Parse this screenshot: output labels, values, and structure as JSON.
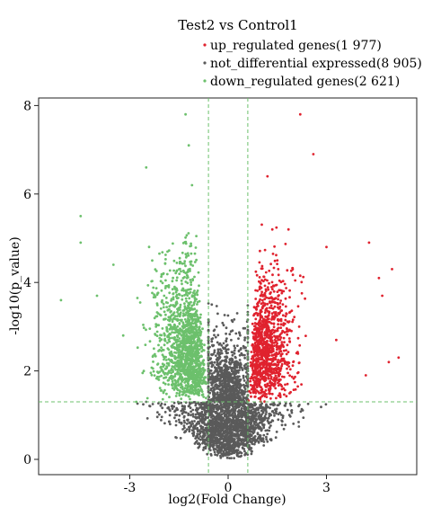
{
  "chart_data": {
    "type": "scatter",
    "title": "Test2 vs Control1",
    "xlabel": "log2(Fold Change)",
    "ylabel": "-log10(p_value)",
    "xlim": [
      -5.4,
      5.6
    ],
    "ylim": [
      -0.2,
      8.1
    ],
    "xticks": [
      -3,
      0,
      3
    ],
    "xtick_labels": [
      "-3",
      "0",
      "3"
    ],
    "yticks": [
      0,
      2,
      4,
      6,
      8
    ],
    "ytick_labels": [
      "0",
      "2",
      "4",
      "6",
      "8"
    ],
    "grid": false,
    "legend_position": "top-right",
    "thresholds": {
      "log2fc": 0.6,
      "neg_log10_p": 1.3
    },
    "series": [
      {
        "name": "up_regulated genes(1 977)",
        "count": 1977,
        "color": "#e0222e",
        "sample_points": [
          [
            2.2,
            7.8
          ],
          [
            2.6,
            6.9
          ],
          [
            5.0,
            4.3
          ],
          [
            4.6,
            4.1
          ],
          [
            4.3,
            4.9
          ],
          [
            4.7,
            3.7
          ],
          [
            5.2,
            2.3
          ],
          [
            3.3,
            2.7
          ],
          [
            1.2,
            6.4
          ],
          [
            1.5,
            4.5
          ],
          [
            3.0,
            4.8
          ],
          [
            4.9,
            2.2
          ],
          [
            4.2,
            1.9
          ]
        ]
      },
      {
        "name": "not_differential expressed(8 905)",
        "count": 8905,
        "color": "#5a5a5a",
        "sample_points": [
          [
            0.0,
            0.1
          ],
          [
            -0.3,
            0.6
          ],
          [
            0.4,
            0.8
          ],
          [
            -0.6,
            1.2
          ],
          [
            -1.6,
            0.5
          ],
          [
            1.2,
            0.4
          ],
          [
            0.6,
            2.0
          ],
          [
            -0.5,
            3.5
          ],
          [
            -2.5,
            1.3
          ],
          [
            -2.3,
            1.25
          ]
        ]
      },
      {
        "name": "down_regulated genes(2 621)",
        "count": 2621,
        "color": "#6cc06c",
        "sample_points": [
          [
            -1.3,
            7.8
          ],
          [
            -1.2,
            7.1
          ],
          [
            -4.5,
            5.5
          ],
          [
            -4.5,
            4.9
          ],
          [
            -5.1,
            3.6
          ],
          [
            -4.0,
            3.7
          ],
          [
            -2.5,
            6.6
          ],
          [
            -3.5,
            4.4
          ],
          [
            -1.1,
            6.2
          ],
          [
            -2.2,
            3.0
          ],
          [
            -3.2,
            2.8
          ],
          [
            -2.8,
            1.3
          ]
        ]
      }
    ]
  }
}
